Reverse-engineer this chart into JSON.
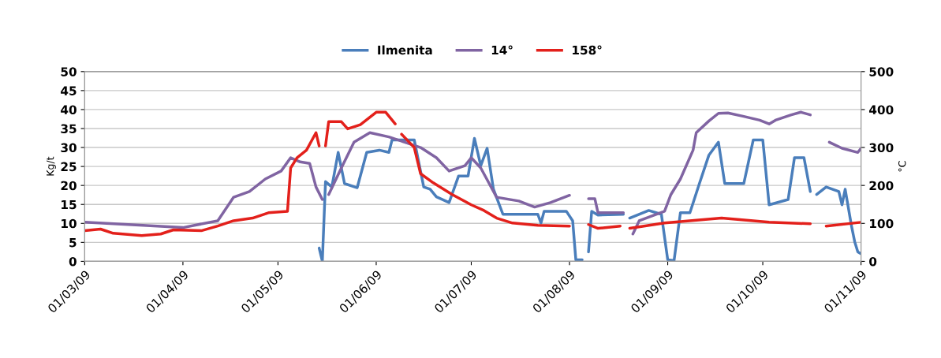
{
  "chart_data": {
    "type": "line",
    "ylabel": "Kg/t",
    "y2label": "°C",
    "xlim": [
      "2009-03-01",
      "2009-11-01"
    ],
    "xticks": [
      {
        "value": "2009-03-01",
        "label": "01/03/09"
      },
      {
        "value": "2009-04-01",
        "label": "01/04/09"
      },
      {
        "value": "2009-05-01",
        "label": "01/05/09"
      },
      {
        "value": "2009-06-01",
        "label": "01/06/09"
      },
      {
        "value": "2009-07-01",
        "label": "01/07/09"
      },
      {
        "value": "2009-08-01",
        "label": "01/08/09"
      },
      {
        "value": "2009-09-01",
        "label": "01/09/09"
      },
      {
        "value": "2009-10-01",
        "label": "01/10/09"
      },
      {
        "value": "2009-11-01",
        "label": "01/11/09"
      }
    ],
    "ylim": [
      0,
      50
    ],
    "yticks": [
      0,
      5,
      10,
      15,
      20,
      25,
      30,
      35,
      40,
      45,
      50
    ],
    "y2lim": [
      0,
      500
    ],
    "y2ticks": [
      0,
      100,
      200,
      300,
      400,
      500
    ],
    "grid": "y",
    "legend": "top",
    "marker": "none",
    "line_style": "solid",
    "series": [
      {
        "name": "Ilmenita",
        "color": "#4a7ebb",
        "x": [
          "2009-05-14",
          "2009-05-15",
          "2009-05-16",
          "2009-05-18",
          "2009-05-20",
          "2009-05-22",
          "2009-05-26",
          "2009-05-29",
          "2009-06-02",
          "2009-06-05",
          "2009-06-06",
          "2009-06-13",
          "2009-06-16",
          "2009-06-18",
          "2009-06-20",
          "2009-06-24",
          "2009-06-27",
          "2009-06-30",
          "2009-07-02",
          "2009-07-04",
          "2009-07-06",
          "2009-07-08",
          "2009-07-11",
          "2009-07-22",
          "2009-07-23",
          "2009-07-24",
          "2009-07-31",
          "2009-08-02",
          "2009-08-03",
          "2009-08-05",
          "2009-08-06",
          "2009-08-07",
          "2009-08-08",
          "2009-08-10",
          "2009-08-18",
          "2009-08-19",
          "2009-08-20",
          "2009-08-26",
          "2009-08-30",
          "2009-09-01",
          "2009-09-03",
          "2009-09-05",
          "2009-09-08",
          "2009-09-11",
          "2009-09-14",
          "2009-09-17",
          "2009-09-19",
          "2009-09-25",
          "2009-09-28",
          "2009-10-01",
          "2009-10-03",
          "2009-10-09",
          "2009-10-11",
          "2009-10-14",
          "2009-10-16",
          "2009-10-17",
          "2009-10-18",
          "2009-10-21",
          "2009-10-25",
          "2009-10-26",
          "2009-10-27",
          "2009-10-29",
          "2009-10-30",
          "2009-10-31",
          "2009-11-01"
        ],
        "values": [
          3.5,
          0,
          21,
          19.6,
          28.7,
          20.5,
          19.4,
          28.7,
          29.3,
          28.7,
          32,
          32,
          19.6,
          19,
          17,
          15.5,
          22.5,
          22.5,
          32.4,
          25.2,
          29.8,
          19,
          12.4,
          12.4,
          10.1,
          13.2,
          13.2,
          10.7,
          0.4,
          0.4,
          null,
          2.5,
          13.2,
          12.2,
          12.4,
          null,
          11.4,
          13.4,
          12.4,
          0.4,
          0.2,
          12.8,
          12.8,
          20.5,
          28,
          31.4,
          20.5,
          20.5,
          32,
          32,
          14.9,
          16.3,
          27.3,
          27.3,
          18.4,
          null,
          17.6,
          19.6,
          18.4,
          14.9,
          19,
          9.3,
          5.2,
          2.5,
          2
        ]
      },
      {
        "name": "14°",
        "color": "#8064a2",
        "axis": "y2",
        "x": [
          "2009-03-01",
          "2009-04-01",
          "2009-04-12",
          "2009-04-17",
          "2009-04-22",
          "2009-04-27",
          "2009-05-02",
          "2009-05-05",
          "2009-05-08",
          "2009-05-11",
          "2009-05-13",
          "2009-05-15",
          "2009-05-16",
          "2009-05-17",
          "2009-05-21",
          "2009-05-25",
          "2009-05-30",
          "2009-06-05",
          "2009-06-10",
          "2009-06-15",
          "2009-06-20",
          "2009-06-24",
          "2009-06-29",
          "2009-07-01",
          "2009-07-04",
          "2009-07-09",
          "2009-07-16",
          "2009-07-21",
          "2009-07-26",
          "2009-08-01",
          "2009-08-05",
          "2009-08-07",
          "2009-08-09",
          "2009-08-10",
          "2009-08-18",
          "2009-08-20",
          "2009-08-21",
          "2009-08-23",
          "2009-08-31",
          "2009-09-02",
          "2009-09-05",
          "2009-09-09",
          "2009-09-10",
          "2009-09-14",
          "2009-09-17",
          "2009-09-20",
          "2009-09-25",
          "2009-09-30",
          "2009-10-03",
          "2009-10-05",
          "2009-10-10",
          "2009-10-13",
          "2009-10-16",
          "2009-10-19",
          "2009-10-22",
          "2009-10-26",
          "2009-10-31",
          "2009-11-01"
        ],
        "values": [
          103,
          89,
          107,
          169,
          184,
          217,
          238,
          273,
          262,
          258,
          196,
          163,
          null,
          176,
          246,
          314,
          339,
          328,
          314,
          300,
          273,
          238,
          252,
          273,
          246,
          169,
          159,
          143,
          155,
          174,
          null,
          165,
          165,
          128,
          128,
          null,
          72,
          107,
          132,
          176,
          217,
          293,
          339,
          370,
          390,
          391,
          382,
          372,
          362,
          372,
          386,
          393,
          386,
          null,
          314,
          298,
          287,
          298
        ]
      },
      {
        "name": "158°",
        "color": "#e3201b",
        "axis": "y2",
        "x": [
          "2009-03-01",
          "2009-03-06",
          "2009-03-10",
          "2009-03-19",
          "2009-03-25",
          "2009-03-29",
          "2009-04-07",
          "2009-04-12",
          "2009-04-17",
          "2009-04-23",
          "2009-04-28",
          "2009-05-04",
          "2009-05-05",
          "2009-05-07",
          "2009-05-10",
          "2009-05-13",
          "2009-05-14",
          "2009-05-15",
          "2009-05-16",
          "2009-05-17",
          "2009-05-21",
          "2009-05-23",
          "2009-05-27",
          "2009-06-01",
          "2009-06-04",
          "2009-06-07",
          "2009-06-08",
          "2009-06-09",
          "2009-06-13",
          "2009-06-15",
          "2009-06-19",
          "2009-06-25",
          "2009-07-01",
          "2009-07-05",
          "2009-07-09",
          "2009-07-14",
          "2009-07-22",
          "2009-08-01",
          "2009-08-04",
          "2009-08-07",
          "2009-08-10",
          "2009-08-17",
          "2009-08-18",
          "2009-08-20",
          "2009-08-31",
          "2009-09-18",
          "2009-10-03",
          "2009-10-16",
          "2009-10-18",
          "2009-10-21",
          "2009-11-01"
        ],
        "values": [
          81,
          85,
          74,
          68,
          72,
          83,
          81,
          93,
          107,
          114,
          128,
          132,
          246,
          273,
          293,
          339,
          304,
          null,
          304,
          368,
          368,
          349,
          360,
          393,
          393,
          362,
          null,
          335,
          300,
          231,
          207,
          176,
          149,
          134,
          114,
          101,
          95,
          93,
          null,
          97,
          87,
          93,
          null,
          87,
          101,
          114,
          103,
          99,
          null,
          93,
          103
        ]
      }
    ]
  }
}
